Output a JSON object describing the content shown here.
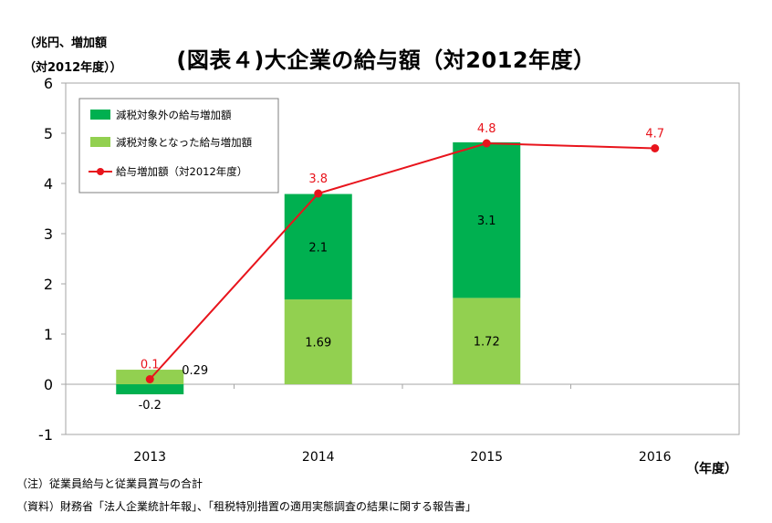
{
  "chart_data": {
    "type": "bar",
    "title": "(図表４)大企業の給与額（対2012年度）",
    "ylabel_line1": "（兆円、増加額",
    "ylabel_line2": "（対2012年度））",
    "xlabel": "（年度）",
    "categories": [
      "2013",
      "2014",
      "2015",
      "2016"
    ],
    "ylim": [
      -1,
      6
    ],
    "yticks": [
      6,
      5,
      4,
      3,
      2,
      1,
      0,
      -1
    ],
    "grid": false,
    "legend_position": "top-left",
    "series": [
      {
        "name": "減税対象外の給与増加額",
        "type": "bar",
        "color": "#00b050",
        "values": [
          -0.2,
          2.1,
          3.1,
          null
        ],
        "labels": [
          "-0.2",
          "2.1",
          "3.1",
          ""
        ]
      },
      {
        "name": "減税対象となった給与増加額",
        "type": "bar",
        "color": "#92d050",
        "values": [
          0.29,
          1.69,
          1.72,
          null
        ],
        "labels": [
          "0.29",
          "1.69",
          "1.72",
          ""
        ]
      },
      {
        "name": "給与増加額（対2012年度）",
        "type": "line",
        "color": "#e8141c",
        "values": [
          0.1,
          3.8,
          4.8,
          4.7
        ],
        "labels": [
          "0.1",
          "3.8",
          "4.8",
          "4.7"
        ]
      }
    ]
  },
  "notes": {
    "note1": "（注）従業員給与と従業員賞与の合計",
    "note2": "（資料）財務省「法人企業統計年報」、「租税特別措置の適用実態調査の結果に関する報告書」"
  }
}
